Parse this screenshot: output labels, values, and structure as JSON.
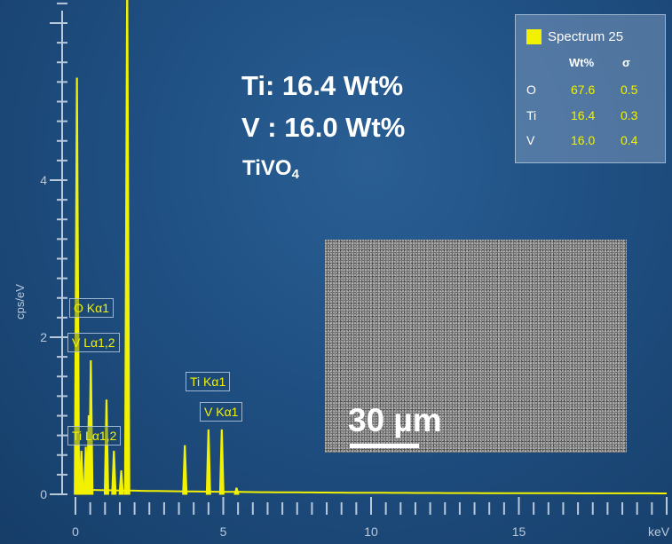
{
  "chart_data": {
    "type": "line",
    "xlabel": "keV",
    "ylabel": "cps/eV",
    "xlim": [
      -0.2,
      20
    ],
    "ylim": [
      0,
      6.5
    ],
    "x_ticks": [
      "0",
      "5",
      "10",
      "15"
    ],
    "y_ticks": [
      "0",
      "2",
      "4"
    ],
    "series": [
      {
        "color": "#f2f200",
        "peaks": [
          {
            "keV": 0.05,
            "cps": 5.3
          },
          {
            "keV": 0.2,
            "cps": 0.55
          },
          {
            "keV": 0.35,
            "cps": 0.6
          },
          {
            "keV": 0.45,
            "cps": 1.0
          },
          {
            "keV": 0.52,
            "cps": 1.7
          },
          {
            "keV": 1.05,
            "cps": 1.2
          },
          {
            "keV": 1.3,
            "cps": 0.55
          },
          {
            "keV": 1.55,
            "cps": 0.3
          },
          {
            "keV": 1.75,
            "cps": 6.6
          },
          {
            "keV": 3.7,
            "cps": 0.62
          },
          {
            "keV": 4.5,
            "cps": 0.82
          },
          {
            "keV": 4.95,
            "cps": 0.82
          },
          {
            "keV": 5.45,
            "cps": 0.08
          }
        ],
        "background_cps": 0.05
      }
    ]
  },
  "legend": {
    "title": "Spectrum 25",
    "swatch_color": "#f2f200",
    "col_wt": "Wt%",
    "col_sigma": "σ",
    "rows": [
      {
        "element": "O",
        "wt": "67.6",
        "sigma": "0.5"
      },
      {
        "element": "Ti",
        "wt": "16.4",
        "sigma": "0.3"
      },
      {
        "element": "V",
        "wt": "16.0",
        "sigma": "0.4"
      }
    ]
  },
  "annotations": {
    "ti_line": "Ti: 16.4 Wt%",
    "v_line": "V : 16.0 Wt%",
    "formula_main": "TiVO",
    "formula_sub": "4"
  },
  "peak_labels": {
    "o_ka1": "O Kα1",
    "v_la12": "V Lα1,2",
    "ti_la12": "Ti Lα1,2",
    "ti_ka1": "Ti Kα1",
    "v_ka1": "V Kα1"
  },
  "sem_image": {
    "scale_label": "30 µm"
  }
}
